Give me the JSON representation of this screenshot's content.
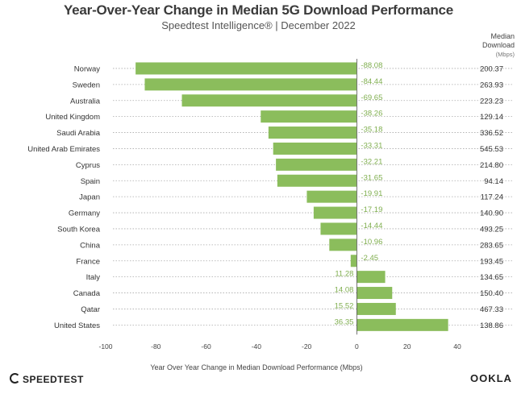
{
  "header": {
    "title": "Year-Over-Year Change in Median 5G Download Performance",
    "subtitle": "Speedtest Intelligence® | December 2022",
    "side_header_line1": "Median",
    "side_header_line2": "Download",
    "side_header_line3": "(Mbps)"
  },
  "footer": {
    "left_logo": "SPEEDTEST",
    "right_logo": "OOKLA"
  },
  "colors": {
    "bar": "#8bbd5c",
    "label": "#7fae4e",
    "dotted": "#aaaaaa"
  },
  "chart_data": {
    "type": "bar",
    "orientation": "horizontal",
    "title": "Year-Over-Year Change in Median 5G Download Performance",
    "xlabel": "Year Over Year Change in Median Download Performance (Mbps)",
    "ylabel": "",
    "xlim": [
      -100,
      40
    ],
    "xticks": [
      -100,
      -80,
      -60,
      -40,
      -20,
      0,
      20,
      40
    ],
    "categories": [
      "Norway",
      "Sweden",
      "Australia",
      "United Kingdom",
      "Saudi Arabia",
      "United Arab Emirates",
      "Cyprus",
      "Spain",
      "Japan",
      "Germany",
      "South Korea",
      "China",
      "France",
      "Italy",
      "Canada",
      "Qatar",
      "United States"
    ],
    "values": [
      -88.08,
      -84.44,
      -69.65,
      -38.26,
      -35.18,
      -33.31,
      -32.21,
      -31.65,
      -19.91,
      -17.19,
      -14.44,
      -10.96,
      -2.45,
      11.28,
      14.08,
      15.52,
      36.35
    ],
    "value_labels": [
      "-88.08",
      "-84.44",
      "-69.65",
      "-38.26",
      "-35.18",
      "-33.31",
      "-32.21",
      "-31.65",
      "-19.91",
      "-17.19",
      "-14.44",
      "-10.96",
      "-2.45",
      "11.28",
      "14.08",
      "15.52",
      "36.35"
    ],
    "median_download": [
      "200.37",
      "263.93",
      "223.23",
      "129.14",
      "336.52",
      "545.53",
      "214.80",
      "94.14",
      "117.24",
      "140.90",
      "493.25",
      "283.65",
      "193.45",
      "134.65",
      "150.40",
      "467.33",
      "138.86"
    ]
  }
}
